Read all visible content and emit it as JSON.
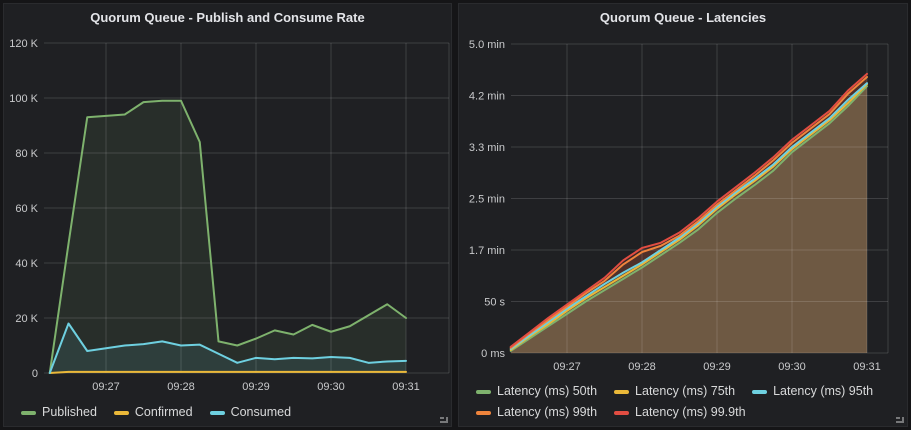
{
  "accent_colors": {
    "green": "#7EB26D",
    "yellow": "#EAB839",
    "cyan": "#6ED0E0",
    "orange": "#EF843C",
    "red": "#E24D42"
  },
  "chart_data": [
    {
      "type": "area",
      "title": "Quorum Queue - Publish and Consume Rate",
      "legend_position": "bottom",
      "grid": true,
      "ylim": [
        0,
        120000
      ],
      "y_ticks": {
        "values": [
          0,
          20000,
          40000,
          60000,
          80000,
          100000,
          120000
        ],
        "labels": [
          "0",
          "20 K",
          "40 K",
          "60 K",
          "80 K",
          "100 K",
          "120 K"
        ]
      },
      "x_ticks": {
        "labels": [
          "09:27",
          "09:28",
          "09:29",
          "09:30",
          "09:31"
        ],
        "indices": [
          3,
          7,
          11,
          15,
          19
        ]
      },
      "series": [
        {
          "name": "Published",
          "color": "#7EB26D",
          "values": [
            0,
            47000,
            93000,
            93500,
            94000,
            98500,
            99000,
            99000,
            84000,
            11500,
            10000,
            12500,
            15500,
            14000,
            17500,
            15000,
            17000,
            21000,
            25000,
            20000
          ]
        },
        {
          "name": "Confirmed",
          "color": "#EAB839",
          "values": [
            0,
            400,
            400,
            400,
            400,
            400,
            400,
            400,
            400,
            400,
            400,
            400,
            400,
            400,
            400,
            400,
            400,
            400,
            400,
            400
          ]
        },
        {
          "name": "Consumed",
          "color": "#6ED0E0",
          "values": [
            0,
            18000,
            8000,
            9000,
            10000,
            10500,
            11500,
            10000,
            10300,
            7000,
            3700,
            5500,
            5000,
            5500,
            5300,
            5800,
            5500,
            3700,
            4200,
            4400
          ]
        }
      ]
    },
    {
      "type": "area",
      "title": "Quorum Queue - Latencies",
      "legend_position": "bottom",
      "grid": true,
      "ylim_seconds": [
        0,
        300
      ],
      "y_ticks": {
        "values": [
          0,
          50,
          100,
          150,
          200,
          250,
          300
        ],
        "labels": [
          "0 ms",
          "50 s",
          "1.7 min",
          "2.5 min",
          "3.3 min",
          "4.2 min",
          "5.0 min"
        ]
      },
      "x_ticks": {
        "labels": [
          "09:27",
          "09:28",
          "09:29",
          "09:30",
          "09:31"
        ],
        "indices": [
          3,
          7,
          11,
          15,
          19
        ]
      },
      "series": [
        {
          "name": "Latency (ms) 50th",
          "color": "#7EB26D",
          "values": [
            2,
            14,
            26,
            38,
            50,
            61,
            72,
            83,
            95,
            107,
            120,
            136,
            150,
            163,
            177,
            195,
            209,
            223,
            240,
            259
          ]
        },
        {
          "name": "Latency (ms) 75th",
          "color": "#EAB839",
          "values": [
            3,
            16,
            28,
            41,
            53,
            64,
            75,
            86,
            98,
            110,
            124,
            140,
            154,
            167,
            181,
            198,
            212,
            226,
            243,
            261
          ]
        },
        {
          "name": "Latency (ms) 95th",
          "color": "#6ED0E0",
          "values": [
            4,
            17,
            30,
            43,
            55,
            67,
            78,
            88,
            100,
            112,
            126,
            142,
            156,
            169,
            183,
            200,
            214,
            228,
            246,
            262
          ]
        },
        {
          "name": "Latency (ms) 99th",
          "color": "#EF843C",
          "values": [
            5,
            19,
            32,
            45,
            58,
            70,
            86,
            98,
            104,
            114,
            128,
            144,
            158,
            172,
            187,
            204,
            218,
            232,
            252,
            268
          ]
        },
        {
          "name": "Latency (ms) 99.9th",
          "color": "#E24D42",
          "values": [
            6,
            20,
            34,
            47,
            60,
            73,
            90,
            102,
            107,
            117,
            131,
            147,
            161,
            175,
            190,
            207,
            221,
            235,
            255,
            271
          ]
        }
      ]
    }
  ]
}
